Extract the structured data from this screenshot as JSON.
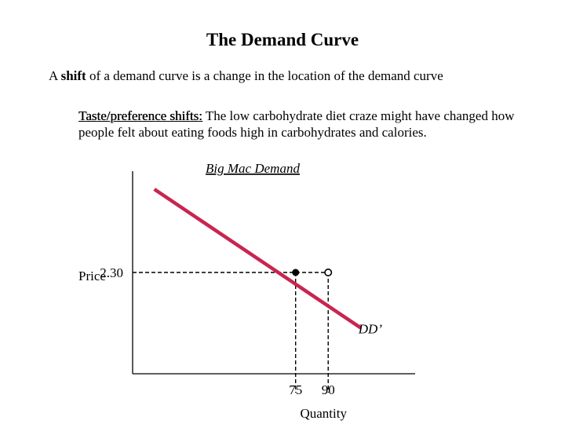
{
  "slide": {
    "title": "The Demand Curve",
    "definition_prefix": "A ",
    "definition_keyword": "shift",
    "definition_suffix": " of a demand curve is a change in the location of the demand curve",
    "example_heading": "Taste/preference shifts:",
    "example_text": " The low carbohydrate diet craze might have changed how people felt about eating foods high in carbohydrates and calories."
  },
  "colors": {
    "demand_curve": "#c8254f",
    "axes": "#000000",
    "guides": "#000000"
  },
  "chart_data": {
    "type": "line",
    "title": "Big Mac Demand",
    "xlabel": "Quantity",
    "ylabel": "Price",
    "series": [
      {
        "name": "DD’",
        "points": [
          [
            10,
            4.19
          ],
          [
            105,
            1.04
          ]
        ]
      }
    ],
    "markers": [
      {
        "x": 75,
        "y": 2.3,
        "style": "filled"
      },
      {
        "x": 90,
        "y": 2.3,
        "style": "open"
      }
    ],
    "x_ticks": [
      75,
      90
    ],
    "y_ticks": [
      2.3
    ],
    "y_tick_labels": [
      "2.30"
    ],
    "xlim": [
      0,
      130
    ],
    "ylim": [
      0,
      4.6
    ],
    "grid": false
  }
}
